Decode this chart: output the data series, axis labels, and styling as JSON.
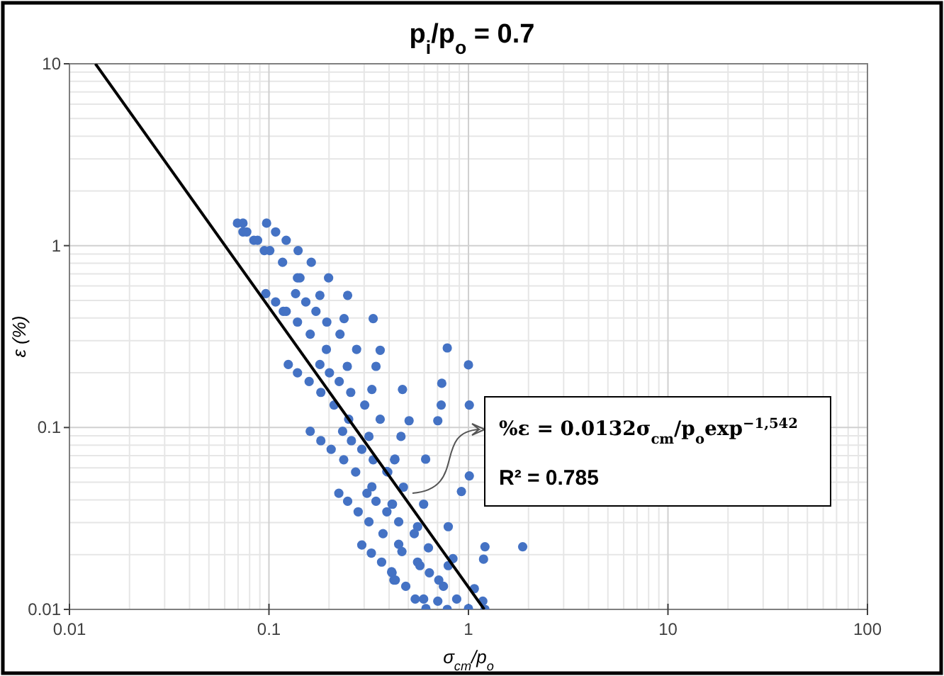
{
  "chart_data": {
    "type": "scatter",
    "title": "p$_{i}$/p$_{o}$ = 0.7",
    "xlabel": "σ$_{cm}$/p$_{o}$",
    "ylabel": "ε (%)",
    "log": "xy",
    "grid": true,
    "xlim": [
      0.01,
      100
    ],
    "ylim": [
      0.01,
      10
    ],
    "xticks": [
      0.01,
      0.1,
      1,
      10,
      100
    ],
    "yticks": [
      0.01,
      0.1,
      1,
      10
    ],
    "annotations": [
      "%ε = 0.0132σ$_{cm}$/p$_{o}$exp$^{−1,542}$",
      "R² = 0.785"
    ],
    "series": [
      {
        "marker": "circle",
        "color": "#4472c4",
        "x": [
          0.0695,
          0.0741,
          0.0973,
          0.0741,
          0.0774,
          0.108,
          0.084,
          0.0877,
          0.122,
          0.0948,
          0.101,
          0.14,
          0.117,
          0.163,
          0.139,
          0.143,
          0.199,
          0.0964,
          0.136,
          0.18,
          0.248,
          0.108,
          0.153,
          0.118,
          0.122,
          0.172,
          0.139,
          0.195,
          0.238,
          0.333,
          0.161,
          0.227,
          0.194,
          0.275,
          0.361,
          0.125,
          0.18,
          0.247,
          0.344,
          0.139,
          0.201,
          0.159,
          0.225,
          0.182,
          0.257,
          0.328,
          0.212,
          0.302,
          0.251,
          0.361,
          0.161,
          0.234,
          0.317,
          0.182,
          0.259,
          0.205,
          0.292,
          0.237,
          0.333,
          0.426,
          0.272,
          0.394,
          0.328,
          0.224,
          0.31,
          0.248,
          0.344,
          0.414,
          0.28,
          0.39,
          0.317,
          0.373,
          0.292,
          0.326,
          0.367,
          0.414,
          0.423,
          0.467,
          0.73,
          1.01,
          0.504,
          0.702,
          0.459,
          0.428,
          0.61,
          0.39,
          1.01,
          0.472,
          0.922,
          0.596,
          0.416,
          0.447,
          0.792,
          0.556,
          0.535,
          0.447,
          0.464,
          0.63,
          1.21,
          1.87,
          0.836,
          1.19,
          0.556,
          0.792,
          0.571,
          0.412,
          0.43,
          0.637,
          0.71,
          0.485,
          0.749,
          1.07,
          0.541,
          0.596,
          0.873,
          1.18,
          0.702,
          0.612,
          0.783,
          1.0,
          1.21,
          0.783,
          1.0,
          0.735
        ],
        "values": [
          1.33,
          1.33,
          1.33,
          1.19,
          1.19,
          1.19,
          1.07,
          1.07,
          1.07,
          0.94,
          0.94,
          0.94,
          0.81,
          0.81,
          0.665,
          0.665,
          0.665,
          0.545,
          0.545,
          0.533,
          0.533,
          0.49,
          0.49,
          0.435,
          0.435,
          0.435,
          0.38,
          0.38,
          0.397,
          0.397,
          0.326,
          0.326,
          0.269,
          0.269,
          0.266,
          0.222,
          0.222,
          0.217,
          0.217,
          0.2,
          0.2,
          0.179,
          0.179,
          0.156,
          0.156,
          0.162,
          0.133,
          0.133,
          0.111,
          0.111,
          0.0953,
          0.0953,
          0.0893,
          0.0846,
          0.0846,
          0.0759,
          0.0759,
          0.0665,
          0.0665,
          0.0665,
          0.0569,
          0.0569,
          0.0472,
          0.0435,
          0.0435,
          0.0393,
          0.0393,
          0.0379,
          0.0344,
          0.0344,
          0.0303,
          0.0261,
          0.0226,
          0.0204,
          0.0182,
          0.0159,
          0.0145,
          0.162,
          0.133,
          0.133,
          0.109,
          0.109,
          0.0893,
          0.067,
          0.067,
          0.0573,
          0.0542,
          0.047,
          0.0445,
          0.0379,
          0.0379,
          0.0303,
          0.0285,
          0.0285,
          0.0261,
          0.0228,
          0.0208,
          0.0218,
          0.0221,
          0.0221,
          0.019,
          0.0189,
          0.0182,
          0.0174,
          0.0174,
          0.0161,
          0.0145,
          0.0159,
          0.0145,
          0.0134,
          0.0134,
          0.013,
          0.0114,
          0.0114,
          0.0114,
          0.0111,
          0.0111,
          0.0101,
          0.01,
          0.0101,
          0.01,
          0.274,
          0.221,
          0.175
        ]
      },
      {
        "type": "line",
        "marker": "none",
        "color": "#000000",
        "x": [
          0.0135,
          1.2
        ],
        "values": [
          10,
          0.01
        ]
      }
    ]
  }
}
